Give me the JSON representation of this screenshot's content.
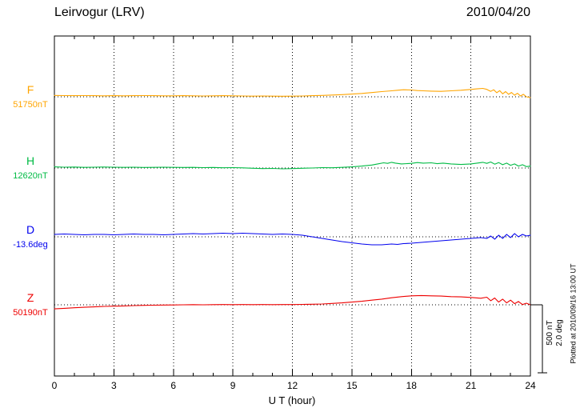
{
  "header": {
    "station": "Leirvogur (LRV)",
    "date": "2010/04/20"
  },
  "xaxis": {
    "label": "U T (hour)",
    "ticks": [
      0,
      3,
      6,
      9,
      12,
      15,
      18,
      21,
      24
    ],
    "minor_tick_every": 1,
    "range": [
      0,
      24
    ]
  },
  "scale_bar": {
    "nT_label": "500 nT",
    "deg_label": "2.0 deg"
  },
  "footer_note": "Plotted at 2010/09/16 13:00 UT",
  "chart_data": {
    "type": "line",
    "title": "Leirvogur (LRV) magnetogram",
    "date": "2010/04/20",
    "xlabel": "U T (hour)",
    "x_range": [
      0,
      24
    ],
    "x_ticks": [
      0,
      3,
      6,
      9,
      12,
      15,
      18,
      21,
      24
    ],
    "grid": "dotted-vertical-every-3h",
    "scale": {
      "nT_per_division": 500,
      "deg_per_division": 2.0
    },
    "series": [
      {
        "id": "F",
        "label": "F",
        "base_label": "51750nT",
        "base_value": 51750,
        "unit": "nT",
        "color": "#FFA500",
        "points": [
          [
            0,
            10
          ],
          [
            0.5,
            9
          ],
          [
            1,
            8
          ],
          [
            1.5,
            9
          ],
          [
            2,
            8
          ],
          [
            2.5,
            7
          ],
          [
            3,
            8
          ],
          [
            3.5,
            7
          ],
          [
            4,
            8
          ],
          [
            4.5,
            9
          ],
          [
            5,
            8
          ],
          [
            5.5,
            7
          ],
          [
            6,
            7
          ],
          [
            6.5,
            8
          ],
          [
            7,
            7
          ],
          [
            7.5,
            6
          ],
          [
            8,
            7
          ],
          [
            8.5,
            8
          ],
          [
            9,
            7
          ],
          [
            9.5,
            6
          ],
          [
            10,
            5
          ],
          [
            10.5,
            6
          ],
          [
            11,
            5
          ],
          [
            11.5,
            4
          ],
          [
            12,
            5
          ],
          [
            12.5,
            6
          ],
          [
            13,
            8
          ],
          [
            13.5,
            10
          ],
          [
            14,
            13
          ],
          [
            14.5,
            16
          ],
          [
            15,
            20
          ],
          [
            15.5,
            25
          ],
          [
            16,
            31
          ],
          [
            16.5,
            38
          ],
          [
            17,
            44
          ],
          [
            17.3,
            48
          ],
          [
            17.6,
            52
          ],
          [
            18,
            50
          ],
          [
            18.3,
            46
          ],
          [
            18.6,
            44
          ],
          [
            19,
            42
          ],
          [
            19.5,
            40
          ],
          [
            20,
            44
          ],
          [
            20.5,
            48
          ],
          [
            21,
            54
          ],
          [
            21.3,
            58
          ],
          [
            21.6,
            62
          ],
          [
            21.8,
            55
          ],
          [
            22,
            40
          ],
          [
            22.15,
            52
          ],
          [
            22.3,
            30
          ],
          [
            22.45,
            45
          ],
          [
            22.6,
            22
          ],
          [
            22.75,
            38
          ],
          [
            22.9,
            18
          ],
          [
            23.05,
            32
          ],
          [
            23.2,
            12
          ],
          [
            23.35,
            26
          ],
          [
            23.5,
            6
          ],
          [
            23.65,
            18
          ],
          [
            23.8,
            0
          ],
          [
            24,
            -6
          ]
        ]
      },
      {
        "id": "H",
        "label": "H",
        "base_label": "12620nT",
        "base_value": 12620,
        "unit": "nT",
        "color": "#00BB44",
        "points": [
          [
            0,
            8
          ],
          [
            0.5,
            6
          ],
          [
            1,
            7
          ],
          [
            1.5,
            5
          ],
          [
            2,
            6
          ],
          [
            2.5,
            7
          ],
          [
            3,
            6
          ],
          [
            3.5,
            5
          ],
          [
            4,
            6
          ],
          [
            4.5,
            4
          ],
          [
            5,
            5
          ],
          [
            5.5,
            6
          ],
          [
            6,
            5
          ],
          [
            6.5,
            4
          ],
          [
            7,
            5
          ],
          [
            7.5,
            3
          ],
          [
            8,
            4
          ],
          [
            8.5,
            2
          ],
          [
            9,
            3
          ],
          [
            9.5,
            1
          ],
          [
            10,
            -2
          ],
          [
            10.5,
            -4
          ],
          [
            11,
            -3
          ],
          [
            11.5,
            -6
          ],
          [
            12,
            -4
          ],
          [
            12.5,
            -2
          ],
          [
            13,
            0
          ],
          [
            13.5,
            3
          ],
          [
            14,
            2
          ],
          [
            14.5,
            5
          ],
          [
            15,
            8
          ],
          [
            15.5,
            14
          ],
          [
            16,
            22
          ],
          [
            16.3,
            30
          ],
          [
            16.6,
            38
          ],
          [
            16.8,
            34
          ],
          [
            17,
            42
          ],
          [
            17.2,
            36
          ],
          [
            17.5,
            30
          ],
          [
            18,
            34
          ],
          [
            18.3,
            40
          ],
          [
            18.6,
            36
          ],
          [
            19,
            38
          ],
          [
            19.3,
            32
          ],
          [
            19.6,
            36
          ],
          [
            20,
            30
          ],
          [
            20.5,
            26
          ],
          [
            21,
            30
          ],
          [
            21.3,
            36
          ],
          [
            21.6,
            42
          ],
          [
            21.8,
            34
          ],
          [
            22,
            44
          ],
          [
            22.2,
            28
          ],
          [
            22.4,
            40
          ],
          [
            22.6,
            24
          ],
          [
            22.8,
            36
          ],
          [
            23,
            20
          ],
          [
            23.2,
            30
          ],
          [
            23.4,
            14
          ],
          [
            23.6,
            24
          ],
          [
            23.8,
            10
          ],
          [
            24,
            14
          ]
        ]
      },
      {
        "id": "D",
        "label": "D",
        "base_label": "-13.6deg",
        "base_value": -13.6,
        "unit": "deg",
        "color": "#0000EE",
        "points": [
          [
            0,
            0.071
          ],
          [
            0.5,
            0.082
          ],
          [
            1,
            0.071
          ],
          [
            1.5,
            0.059
          ],
          [
            2,
            0.071
          ],
          [
            2.5,
            0.071
          ],
          [
            3,
            0.059
          ],
          [
            3.5,
            0.071
          ],
          [
            4,
            0.082
          ],
          [
            4.5,
            0.071
          ],
          [
            5,
            0.071
          ],
          [
            5.5,
            0.059
          ],
          [
            6,
            0.071
          ],
          [
            6.5,
            0.082
          ],
          [
            7,
            0.094
          ],
          [
            7.5,
            0.082
          ],
          [
            8,
            0.094
          ],
          [
            8.5,
            0.106
          ],
          [
            9,
            0.094
          ],
          [
            9.5,
            0.106
          ],
          [
            10,
            0.094
          ],
          [
            10.5,
            0.082
          ],
          [
            11,
            0.071
          ],
          [
            11.5,
            0.082
          ],
          [
            12,
            0.071
          ],
          [
            12.5,
            0.047
          ],
          [
            13,
            0
          ],
          [
            13.5,
            -0.047
          ],
          [
            14,
            -0.094
          ],
          [
            14.5,
            -0.141
          ],
          [
            15,
            -0.176
          ],
          [
            15.5,
            -0.212
          ],
          [
            16,
            -0.235
          ],
          [
            16.5,
            -0.235
          ],
          [
            17,
            -0.212
          ],
          [
            17.3,
            -0.224
          ],
          [
            17.6,
            -0.2
          ],
          [
            18,
            -0.188
          ],
          [
            18.5,
            -0.165
          ],
          [
            19,
            -0.141
          ],
          [
            19.5,
            -0.118
          ],
          [
            20,
            -0.094
          ],
          [
            20.5,
            -0.071
          ],
          [
            21,
            -0.047
          ],
          [
            21.5,
            -0.024
          ],
          [
            21.8,
            -0.047
          ],
          [
            22,
            0.024
          ],
          [
            22.2,
            -0.071
          ],
          [
            22.4,
            0.047
          ],
          [
            22.6,
            -0.047
          ],
          [
            22.8,
            0.071
          ],
          [
            23,
            -0.024
          ],
          [
            23.2,
            0.094
          ],
          [
            23.4,
            0
          ],
          [
            23.6,
            0.071
          ],
          [
            23.8,
            0.024
          ],
          [
            24,
            0.047
          ]
        ]
      },
      {
        "id": "Z",
        "label": "Z",
        "base_label": "50190nT",
        "base_value": 50190,
        "unit": "nT",
        "color": "#EE0000",
        "points": [
          [
            0,
            -30
          ],
          [
            0.5,
            -26
          ],
          [
            1,
            -22
          ],
          [
            1.5,
            -18
          ],
          [
            2,
            -15
          ],
          [
            2.5,
            -12
          ],
          [
            3,
            -10
          ],
          [
            3.5,
            -8
          ],
          [
            4,
            -6
          ],
          [
            4.5,
            -4
          ],
          [
            5,
            -3
          ],
          [
            5.5,
            -2
          ],
          [
            6,
            -1
          ],
          [
            6.5,
            0
          ],
          [
            7,
            1
          ],
          [
            7.5,
            0
          ],
          [
            8,
            1
          ],
          [
            8.5,
            2
          ],
          [
            9,
            1
          ],
          [
            9.5,
            2
          ],
          [
            10,
            1
          ],
          [
            10.5,
            2
          ],
          [
            11,
            1
          ],
          [
            11.5,
            2
          ],
          [
            12,
            2
          ],
          [
            12.5,
            3
          ],
          [
            13,
            4
          ],
          [
            13.5,
            6
          ],
          [
            14,
            10
          ],
          [
            14.5,
            14
          ],
          [
            15,
            20
          ],
          [
            15.5,
            26
          ],
          [
            16,
            34
          ],
          [
            16.5,
            42
          ],
          [
            17,
            52
          ],
          [
            17.5,
            60
          ],
          [
            18,
            66
          ],
          [
            18.5,
            68
          ],
          [
            19,
            66
          ],
          [
            19.5,
            64
          ],
          [
            20,
            60
          ],
          [
            20.5,
            58
          ],
          [
            21,
            54
          ],
          [
            21.5,
            48
          ],
          [
            21.8,
            56
          ],
          [
            22,
            30
          ],
          [
            22.2,
            50
          ],
          [
            22.4,
            20
          ],
          [
            22.6,
            42
          ],
          [
            22.8,
            14
          ],
          [
            23,
            34
          ],
          [
            23.2,
            8
          ],
          [
            23.4,
            24
          ],
          [
            23.6,
            2
          ],
          [
            23.8,
            12
          ],
          [
            24,
            0
          ]
        ]
      }
    ]
  }
}
